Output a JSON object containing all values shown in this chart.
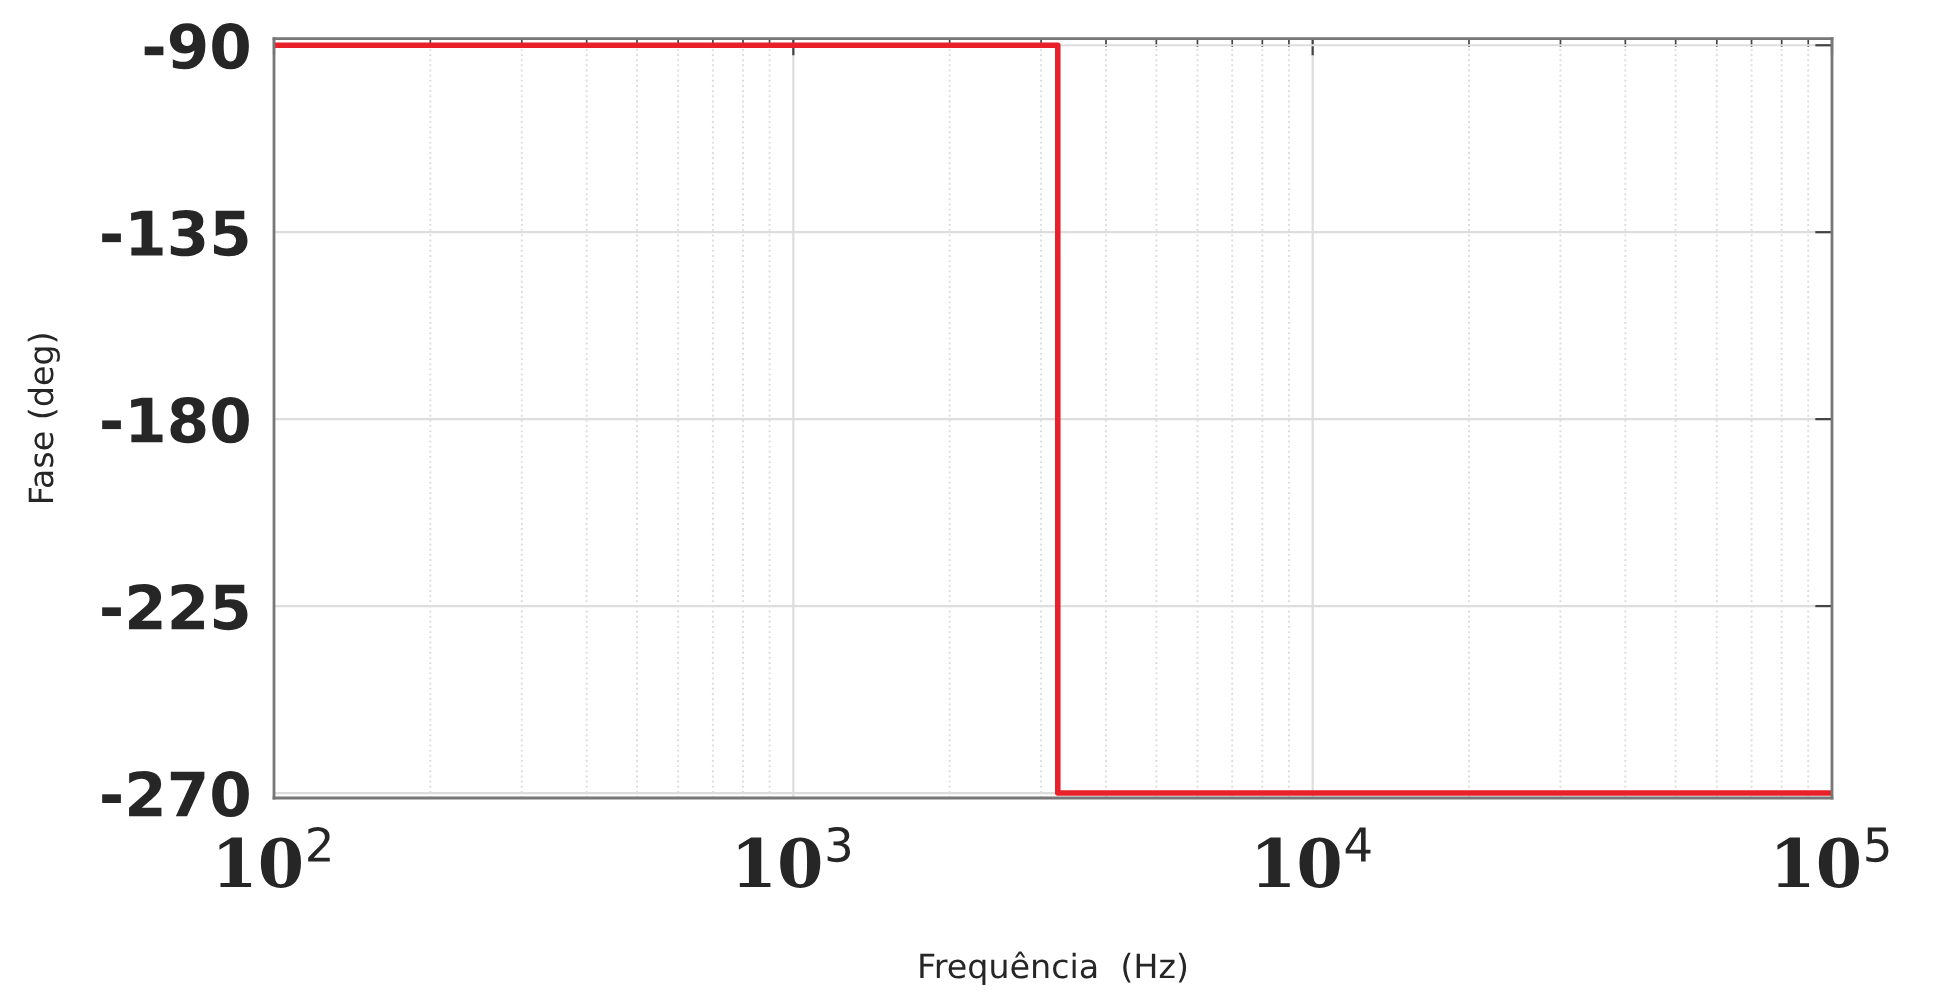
{
  "chart_data": {
    "type": "line",
    "xlabel": "Frequência  (Hz)",
    "ylabel": "Fase (deg)",
    "series": [
      {
        "color": "#e8202a",
        "x": [
          100,
          3230,
          3230,
          100000
        ],
        "values": [
          -90,
          -90,
          -270,
          -270
        ]
      }
    ],
    "log": "x",
    "xlim": [
      100,
      100000
    ],
    "ylim": [
      -271.2,
      -88.4
    ],
    "xticks": [
      {
        "value": 100,
        "label": "10$^{2}$"
      },
      {
        "value": 1000,
        "label": "10$^{3}$"
      },
      {
        "value": 10000,
        "label": "10$^{4}$"
      },
      {
        "value": 100000,
        "label": "10$^{5}$"
      }
    ],
    "yticks": [
      -90,
      -135,
      -180,
      -225,
      -270
    ],
    "grid": true,
    "marker": "none",
    "line_style": "solid"
  }
}
